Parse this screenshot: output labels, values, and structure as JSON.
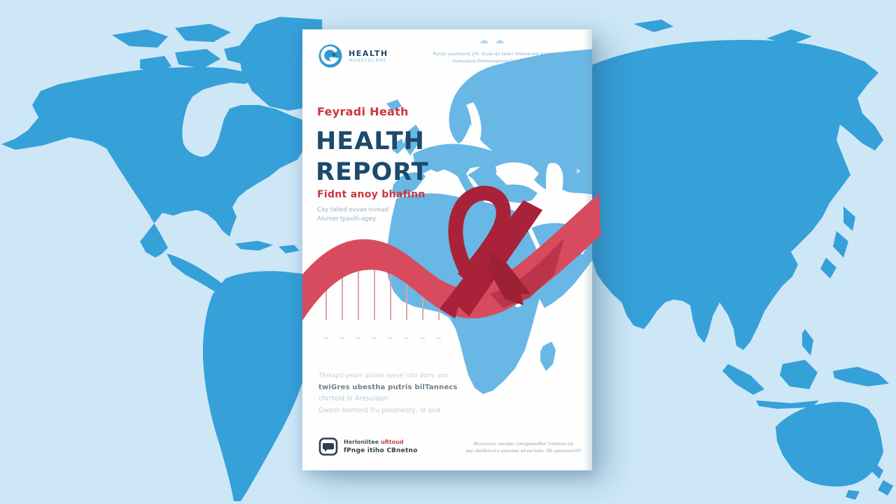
{
  "colors": {
    "background_sea": "#cde7f7",
    "background_land": "#36a0d9",
    "poster_bg": "#fefefe",
    "inner_map_land": "#69b7e5",
    "title_navy": "#1b4a6d",
    "accent_red": "#cf3440",
    "ribbon_light": "#d84b5f",
    "ribbon_dark": "#a8233a",
    "muted_gray": "#9fb0bc"
  },
  "icons": {
    "brand_logo": "globe-swirl-icon",
    "header_decor": "cloud-icon",
    "map_decor": "plane-icon",
    "footer_logo": "chat-bubble-icon",
    "center_art": "awareness-ribbon"
  },
  "poster": {
    "brand": {
      "name": "HEALTH",
      "tagline": "MUNSCDCRNE"
    },
    "header_note": {
      "line1": "Punier yoamuord 20t. Guaii-do taieri Yotwuereid wiro/auotattau",
      "line2": "manuuaua Dewoueaaooenieique mauli-oseou"
    },
    "eyebrow": "Feyradi Heath",
    "title": {
      "line1": "HEALTH",
      "line2": "REPORT"
    },
    "subtitle": "Fidnt anoy bhafinn",
    "subtitle_note": {
      "line1": "Cay tailed euvas nivead",
      "line2": "Alumer tpaviti-agey"
    },
    "body": {
      "line1": "Thikapd peurr abiask weve nito dony ano",
      "line2": "twiGres ubestha putris bilTannecs",
      "line3": "chrrteld ib Aresulqun",
      "line4": "Gweer bumord fru posonesty, id aud"
    },
    "footer": {
      "left": {
        "line1_dark": "Herloniitee ",
        "line1_red": "uRtoud",
        "line2": "fPnge itiho CBnetno"
      },
      "right": {
        "line1": "Niuvonrun nenatar comgawedBar Svetena sip",
        "line2": "aan dalidulcoru uonuaes whoe hota. (BI uaonaoernft)"
      }
    }
  },
  "chart_data": {
    "type": "bar",
    "title": "",
    "xlabel": "",
    "ylabel": "",
    "categories": [
      "",
      "",
      "",
      "",
      "",
      "",
      "",
      ""
    ],
    "values": [
      68,
      82,
      95,
      105,
      97,
      84,
      71,
      60
    ],
    "ylim": [
      0,
      110
    ],
    "legend": "none",
    "grid": "off",
    "note": "decorative unlabeled stem chart on report cover; heights in px, baseline ticks only"
  },
  "decor": {
    "cloud_glyphs": "☁ ☁",
    "plane_glyph": "✈"
  }
}
